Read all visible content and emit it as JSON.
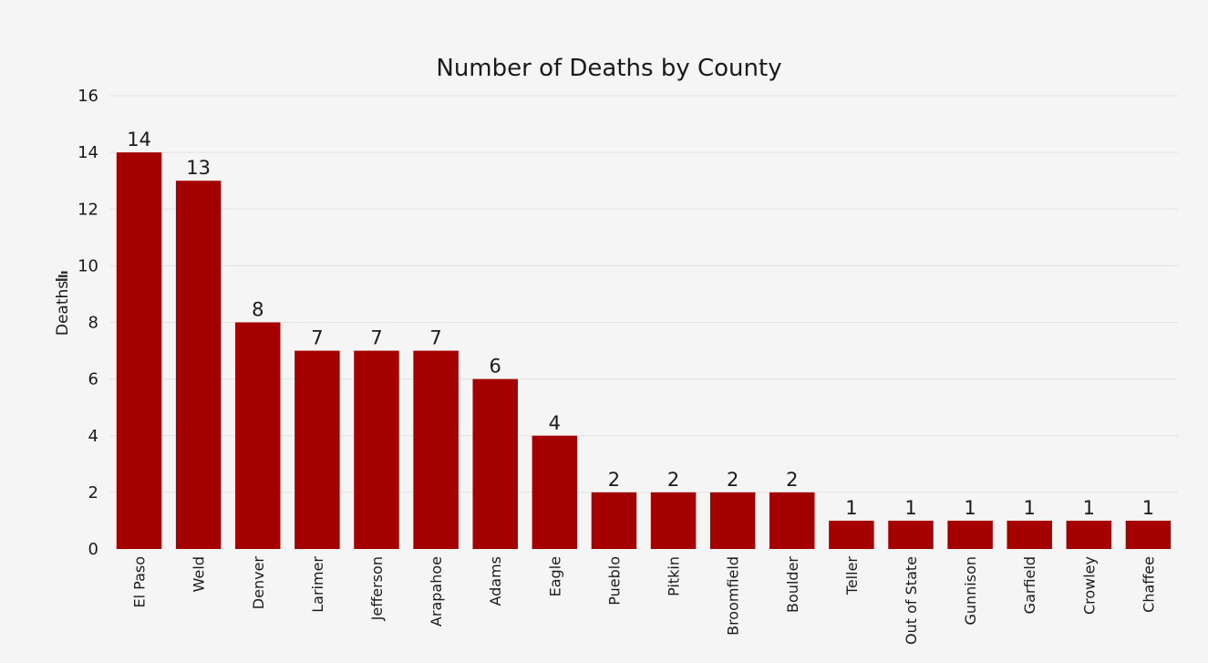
{
  "chart_data": {
    "type": "bar",
    "title": "Number of Deaths by County",
    "xlabel": "",
    "ylabel": "Deaths",
    "categories": [
      "El Paso",
      "Weld",
      "Denver",
      "Larimer",
      "Jefferson",
      "Arapahoe",
      "Adams",
      "Eagle",
      "Pueblo",
      "Pitkin",
      "Broomfield",
      "Boulder",
      "Teller",
      "Out of State",
      "Gunnison",
      "Garfield",
      "Crowley",
      "Chaffee"
    ],
    "values": [
      14,
      13,
      8,
      7,
      7,
      7,
      6,
      4,
      2,
      2,
      2,
      2,
      1,
      1,
      1,
      1,
      1,
      1
    ],
    "ylim": [
      0,
      16
    ],
    "yticks": [
      0,
      2,
      4,
      6,
      8,
      10,
      12,
      14,
      16
    ],
    "grid": true,
    "data_labels": true,
    "bar_color": "#a50000",
    "ylabel_icon": "sort-icon"
  }
}
